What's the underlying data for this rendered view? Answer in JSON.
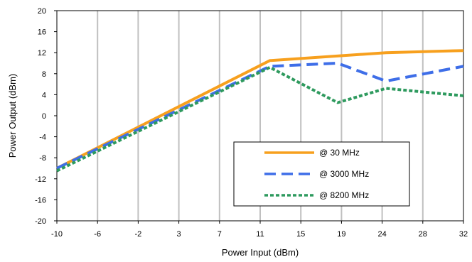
{
  "chart_data": {
    "type": "line",
    "title": "",
    "xlabel": "Power Input (dBm)",
    "ylabel": "Power Output (dBm)",
    "x_tick_labels": [
      "-10",
      "-6",
      "-2",
      "3",
      "7",
      "11",
      "15",
      "19",
      "24",
      "28",
      "32"
    ],
    "ylim": [
      -20,
      20
    ],
    "y_ticks": [
      -20,
      -16,
      -12,
      -8,
      -4,
      0,
      4,
      8,
      12,
      16,
      20
    ],
    "grid": "vertical",
    "legend_placement": "lower-right",
    "series": [
      {
        "name": "@ 30 MHz",
        "color": "#F7A01E",
        "style": "solid",
        "x": [
          -10,
          12,
          24,
          32
        ],
        "y": [
          -10,
          10.5,
          12,
          12.4
        ]
      },
      {
        "name": "@ 3000 MHz",
        "color": "#3E6EE8",
        "style": "dashed",
        "x": [
          -10,
          12,
          19,
          24,
          32
        ],
        "y": [
          -10,
          9.4,
          10,
          6.6,
          9.4
        ]
      },
      {
        "name": "@ 8200 MHz",
        "color": "#2E9A5E",
        "style": "dotted",
        "x": [
          -10,
          12,
          19,
          24,
          32
        ],
        "y": [
          -10.5,
          9.2,
          2.5,
          5.2,
          3.8
        ]
      }
    ]
  }
}
